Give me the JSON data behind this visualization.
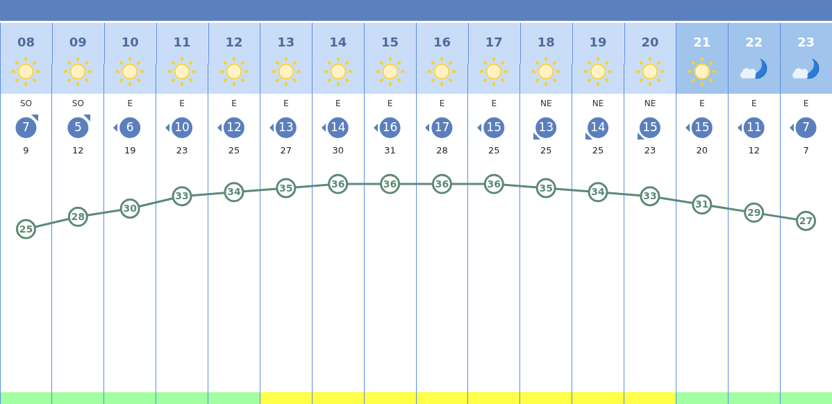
{
  "chart_data": {
    "type": "line",
    "categories": [
      "08",
      "09",
      "10",
      "11",
      "12",
      "13",
      "14",
      "15",
      "16",
      "17",
      "18",
      "19",
      "20",
      "21",
      "22",
      "23"
    ],
    "series": [
      {
        "color": "#5b8a76",
        "values": [
          25,
          28,
          30,
          33,
          34,
          35,
          36,
          36,
          36,
          36,
          35,
          34,
          33,
          31,
          29,
          27
        ]
      }
    ],
    "data_labels": true,
    "marker": "circle",
    "grid": "x",
    "annotations": [
      "SO",
      "SO",
      "E",
      "E",
      "E",
      "E",
      "E",
      "E",
      "E",
      "E",
      "NE",
      "NE",
      "NE",
      "E",
      "E",
      "E",
      "7",
      "5",
      "6",
      "10",
      "12",
      "13",
      "14",
      "16",
      "17",
      "15",
      "13",
      "14",
      "15",
      "15",
      "11",
      "7",
      "9",
      "12",
      "19",
      "23",
      "25",
      "27",
      "30",
      "31",
      "28",
      "25",
      "25",
      "25",
      "23",
      "20",
      "12",
      "7"
    ]
  }
}
